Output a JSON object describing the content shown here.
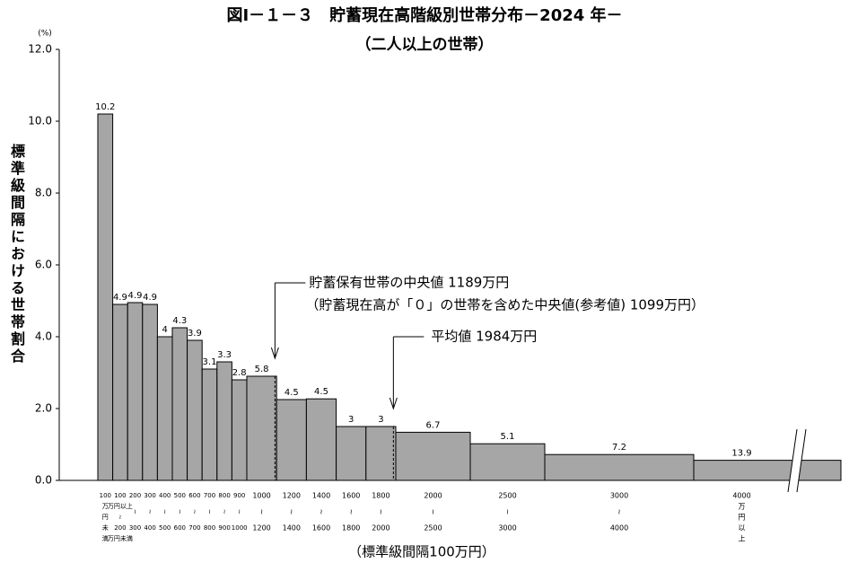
{
  "chart_data": {
    "type": "histogram",
    "title": "図Ⅰ－１－３　貯蓄現在高階級別世帯分布－2024 年－",
    "subtitle": "（二人以上の世帯）",
    "y_unit": "(%)",
    "y_label": "標準級間隔における世帯割合",
    "x_label": "（標準級間隔100万円）",
    "bins": [
      0,
      100,
      200,
      300,
      400,
      500,
      600,
      700,
      800,
      900,
      1000,
      1200,
      1400,
      1600,
      1800,
      2000,
      2500,
      3000,
      4000,
      null
    ],
    "values": [
      10.2,
      4.9,
      4.95,
      4.9,
      4.0,
      4.25,
      3.9,
      3.1,
      3.3,
      2.8,
      2.9,
      2.25,
      2.27,
      1.5,
      1.5,
      1.34,
      1.02,
      0.72,
      0.56
    ],
    "shares": [
      10.2,
      4.9,
      4.9,
      4.9,
      4.0,
      4.3,
      3.9,
      3.1,
      3.3,
      2.8,
      5.8,
      4.5,
      4.5,
      3.0,
      3.0,
      6.7,
      5.1,
      7.2,
      13.9
    ],
    "x_labels": [
      [
        "100",
        "万",
        "円",
        "未",
        "満"
      ],
      [
        "100",
        "万円以上",
        "≀",
        "200",
        "万円未満"
      ],
      [
        "200",
        "≀",
        "300"
      ],
      [
        "300",
        "≀",
        "400"
      ],
      [
        "400",
        "≀",
        "500"
      ],
      [
        "500",
        "≀",
        "600"
      ],
      [
        "600",
        "≀",
        "700"
      ],
      [
        "700",
        "≀",
        "800"
      ],
      [
        "800",
        "≀",
        "900"
      ],
      [
        "900",
        "≀",
        "1000"
      ],
      [
        "1000",
        "≀",
        "1200"
      ],
      [
        "1200",
        "≀",
        "1400"
      ],
      [
        "1400",
        "≀",
        "1600"
      ],
      [
        "1600",
        "≀",
        "1800"
      ],
      [
        "1800",
        "≀",
        "2000"
      ],
      [
        "2000",
        "≀",
        "2500"
      ],
      [
        "2500",
        "≀",
        "3000"
      ],
      [
        "3000",
        "≀",
        "4000"
      ],
      [
        "4000",
        "万",
        "円",
        "以",
        "上"
      ]
    ],
    "color": "#a6a6a6",
    "ylim": [
      0,
      12
    ],
    "yticks": [
      {
        "value": 0,
        "label": "0.0"
      },
      {
        "value": 2,
        "label": "2.0"
      },
      {
        "value": 4,
        "label": "4.0"
      },
      {
        "value": 6,
        "label": "6.0"
      },
      {
        "value": 8,
        "label": "8.0"
      },
      {
        "value": 10,
        "label": "10.0"
      },
      {
        "value": 12,
        "label": "12.0"
      }
    ],
    "annotations": [
      {
        "x": 1189,
        "lines": [
          "貯蓄保有世帯の中央値 1189万円",
          "（貯蓄現在高が「０」の世帯を含めた中央値(参考値) 1099万円）"
        ]
      },
      {
        "x": 1984,
        "lines": [
          "平均値 1984万円"
        ]
      }
    ]
  }
}
